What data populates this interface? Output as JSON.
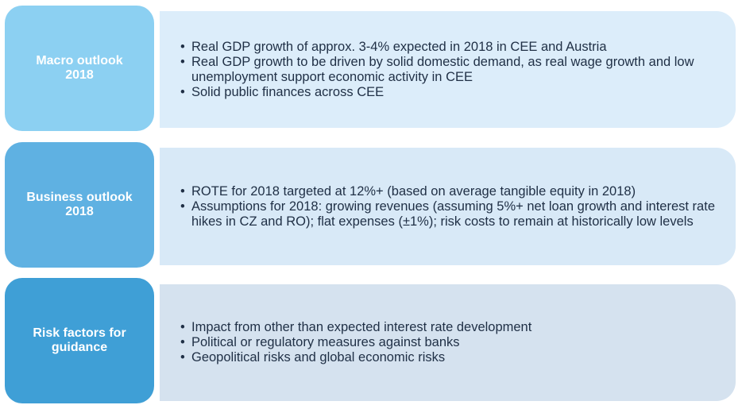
{
  "colors": {
    "macro_label_bg": "#8cd0f2",
    "macro_content_bg": "#dcedfa",
    "business_label_bg": "#5fb1e2",
    "business_content_bg": "#d8e9f7",
    "risk_label_bg": "#3f9fd6",
    "risk_content_bg": "#d5e2ef",
    "text": "#1f2f45"
  },
  "sections": [
    {
      "label_line1": "Macro outlook",
      "label_line2": "2018",
      "bullets": [
        "Real GDP growth of approx. 3-4% expected in 2018 in CEE and Austria",
        "Real GDP growth to be driven by solid domestic demand, as real wage growth and low unemployment support economic activity in CEE",
        "Solid public finances across CEE"
      ]
    },
    {
      "label_line1": "Business outlook",
      "label_line2": "2018",
      "bullets": [
        "ROTE for 2018 targeted at 12%+ (based on average tangible equity in 2018)",
        "Assumptions for 2018: growing revenues (assuming 5%+ net loan growth and interest rate hikes in CZ and RO); flat expenses (±1%); risk costs to remain at historically low levels"
      ]
    },
    {
      "label_line1": "Risk factors for",
      "label_line2": "guidance",
      "bullets": [
        "Impact from other than expected interest rate development",
        "Political or regulatory measures against banks",
        "Geopolitical risks and global economic risks"
      ]
    }
  ]
}
